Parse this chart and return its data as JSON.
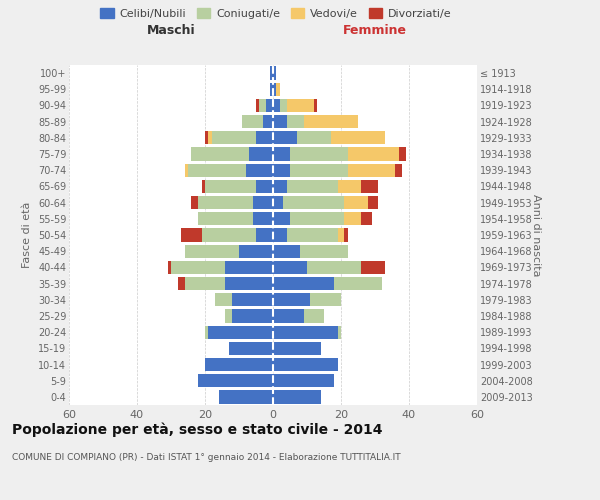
{
  "age_groups": [
    "0-4",
    "5-9",
    "10-14",
    "15-19",
    "20-24",
    "25-29",
    "30-34",
    "35-39",
    "40-44",
    "45-49",
    "50-54",
    "55-59",
    "60-64",
    "65-69",
    "70-74",
    "75-79",
    "80-84",
    "85-89",
    "90-94",
    "95-99",
    "100+"
  ],
  "birth_years": [
    "2009-2013",
    "2004-2008",
    "1999-2003",
    "1994-1998",
    "1989-1993",
    "1984-1988",
    "1979-1983",
    "1974-1978",
    "1969-1973",
    "1964-1968",
    "1959-1963",
    "1954-1958",
    "1949-1953",
    "1944-1948",
    "1939-1943",
    "1934-1938",
    "1929-1933",
    "1924-1928",
    "1919-1923",
    "1914-1918",
    "≤ 1913"
  ],
  "colors": {
    "celibi": "#4472c4",
    "coniugati": "#b8cfa0",
    "vedovi": "#f5c869",
    "divorziati": "#c0392b"
  },
  "males": {
    "celibi": [
      16,
      22,
      20,
      13,
      19,
      12,
      12,
      14,
      14,
      10,
      5,
      6,
      6,
      5,
      8,
      7,
      5,
      3,
      2,
      1,
      1
    ],
    "coniugati": [
      0,
      0,
      0,
      0,
      1,
      2,
      5,
      12,
      16,
      16,
      16,
      16,
      16,
      15,
      17,
      17,
      13,
      6,
      2,
      0,
      0
    ],
    "vedovi": [
      0,
      0,
      0,
      0,
      0,
      0,
      0,
      0,
      0,
      0,
      0,
      0,
      0,
      0,
      1,
      0,
      1,
      0,
      0,
      0,
      0
    ],
    "divorziati": [
      0,
      0,
      0,
      0,
      0,
      0,
      0,
      2,
      1,
      0,
      6,
      0,
      2,
      1,
      0,
      0,
      1,
      0,
      1,
      0,
      0
    ]
  },
  "females": {
    "celibi": [
      14,
      18,
      19,
      14,
      19,
      9,
      11,
      18,
      10,
      8,
      4,
      5,
      3,
      4,
      5,
      5,
      7,
      4,
      2,
      1,
      1
    ],
    "coniugati": [
      0,
      0,
      0,
      0,
      1,
      6,
      9,
      14,
      16,
      14,
      15,
      16,
      18,
      15,
      17,
      17,
      10,
      5,
      2,
      0,
      0
    ],
    "vedovi": [
      0,
      0,
      0,
      0,
      0,
      0,
      0,
      0,
      0,
      0,
      2,
      5,
      7,
      7,
      14,
      15,
      16,
      16,
      8,
      1,
      0
    ],
    "divorziati": [
      0,
      0,
      0,
      0,
      0,
      0,
      0,
      0,
      7,
      0,
      1,
      3,
      3,
      5,
      2,
      2,
      0,
      0,
      1,
      0,
      0
    ]
  },
  "title": "Popolazione per età, sesso e stato civile - 2014",
  "subtitle": "COMUNE DI COMPIANO (PR) - Dati ISTAT 1° gennaio 2014 - Elaborazione TUTTITALIA.IT",
  "ylabel_left": "Fasce di età",
  "ylabel_right": "Anni di nascita",
  "xlabel_left": "Maschi",
  "xlabel_right": "Femmine",
  "xlim": 60,
  "background_color": "#efefef",
  "plot_bg_color": "#ffffff",
  "legend_labels": [
    "Celibi/Nubili",
    "Coniugati/e",
    "Vedovi/e",
    "Divorziati/e"
  ]
}
